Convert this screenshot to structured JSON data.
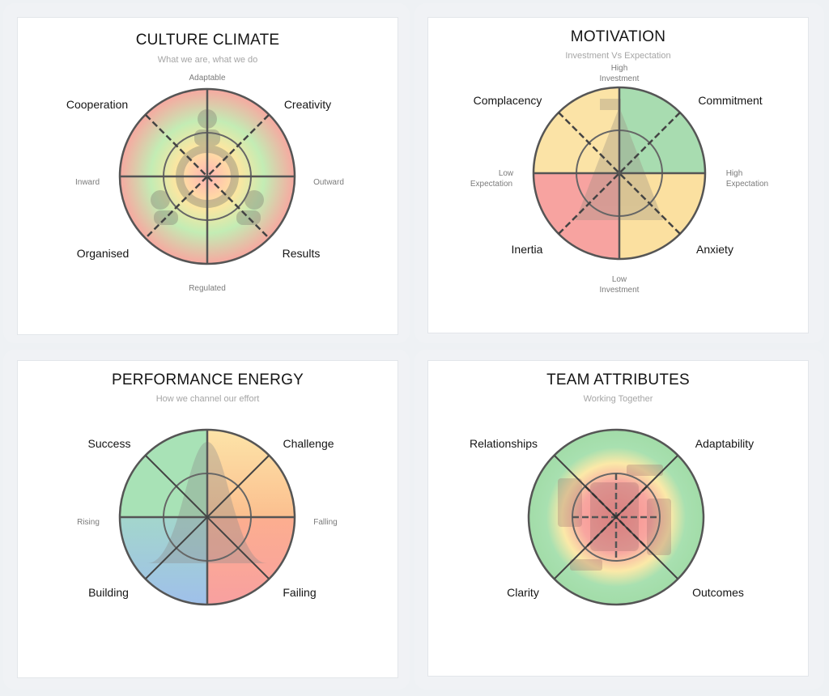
{
  "charts": [
    {
      "id": "culture",
      "title": "CULTURE CLIMATE",
      "subtitle": "What we are, what we do",
      "quadrants": {
        "top_left": "Cooperation",
        "top_right": "Creativity",
        "bottom_left": "Organised",
        "bottom_right": "Results"
      },
      "axes": {
        "top": "Adaptable",
        "bottom": "Regulated",
        "left": "Inward",
        "right": "Outward"
      },
      "icon": "people-circle-icon"
    },
    {
      "id": "motivation",
      "title": "MOTIVATION",
      "subtitle": "Investment Vs Expectation",
      "quadrants": {
        "top_left": "Complacency",
        "top_right": "Commitment",
        "bottom_left": "Inertia",
        "bottom_right": "Anxiety"
      },
      "axes": {
        "top": [
          "High",
          "Investment"
        ],
        "bottom": [
          "Low",
          "Investment"
        ],
        "left": [
          "Low",
          "Expectation"
        ],
        "right": [
          "High",
          "Expectation"
        ]
      },
      "icon": "mountain-flag-icon"
    },
    {
      "id": "performance",
      "title": "PERFORMANCE ENERGY",
      "subtitle": "How we channel our effort",
      "quadrants": {
        "top_left": "Success",
        "top_right": "Challenge",
        "bottom_left": "Building",
        "bottom_right": "Failing"
      },
      "axes": {
        "left": "Rising",
        "right": "Falling"
      },
      "icon": "bell-curve-icon"
    },
    {
      "id": "team",
      "title": "TEAM ATTRIBUTES",
      "subtitle": "Working Together",
      "quadrants": {
        "top_left": "Relationships",
        "top_right": "Adaptability",
        "bottom_left": "Clarity",
        "bottom_right": "Outcomes"
      },
      "icon": "puzzle-hands-icon"
    }
  ]
}
